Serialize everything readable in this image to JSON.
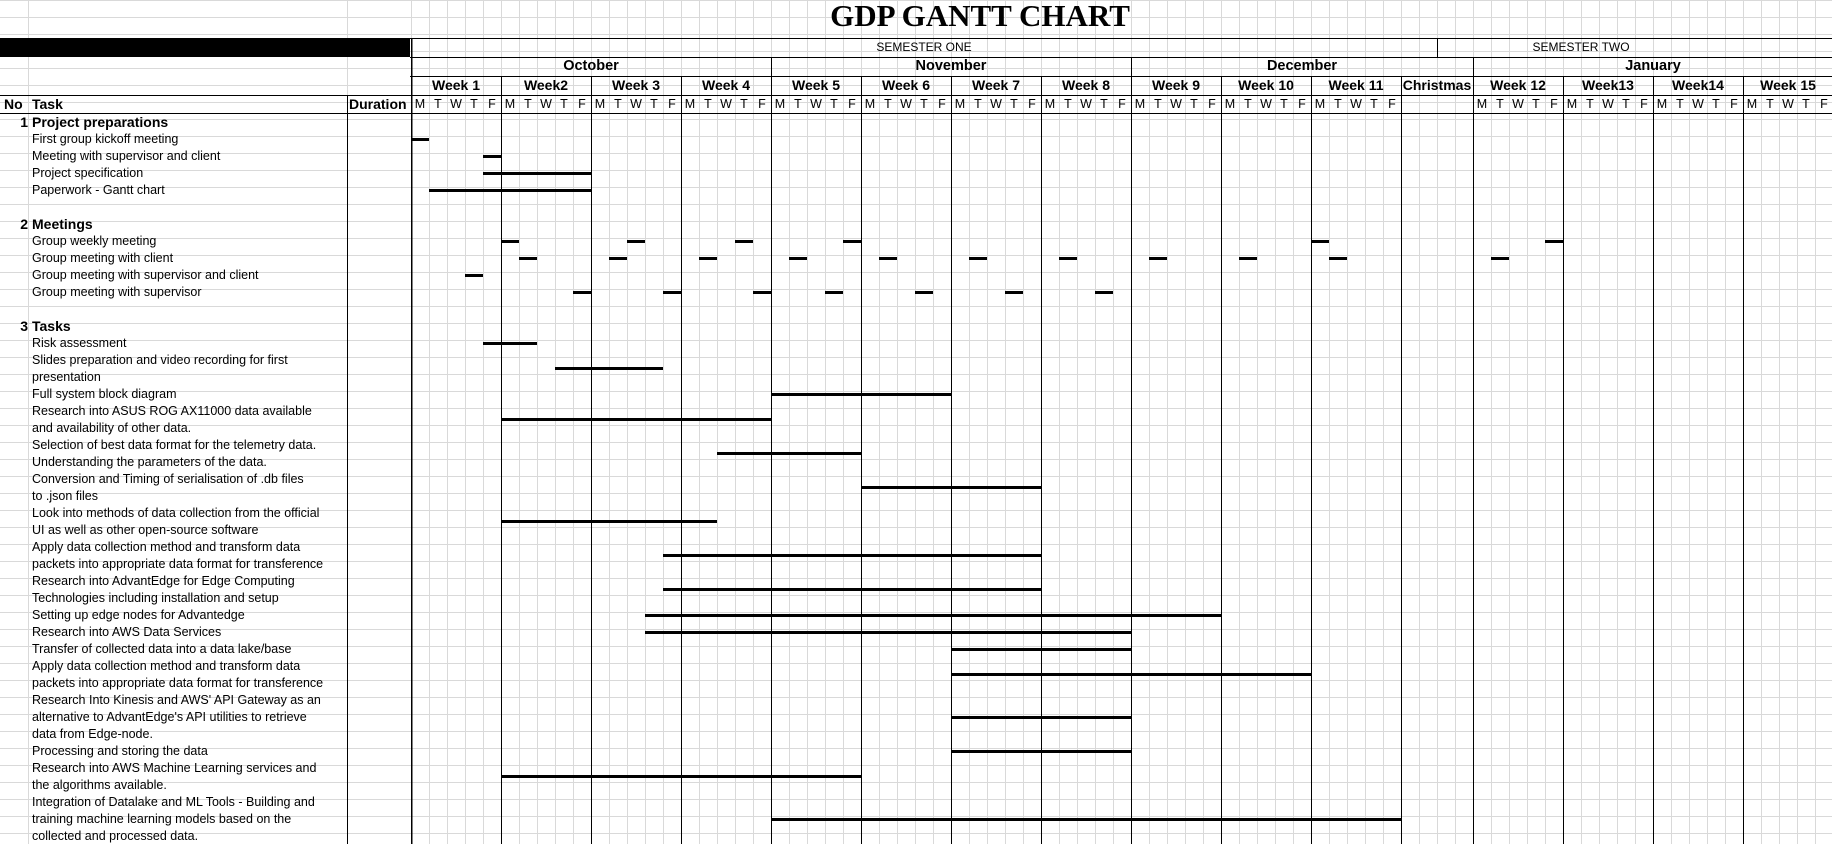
{
  "title": "GDP GANTT CHART",
  "semesters": [
    {
      "label": "SEMESTER ONE",
      "start_col": 0,
      "end_col": 57
    },
    {
      "label": "SEMESTER TWO",
      "start_col": 57,
      "end_col": 73
    }
  ],
  "months": [
    {
      "label": "October",
      "start_col": 0,
      "end_col": 20
    },
    {
      "label": "November",
      "start_col": 20,
      "end_col": 40
    },
    {
      "label": "December",
      "start_col": 40,
      "end_col": 59
    },
    {
      "label": "January",
      "start_col": 59,
      "end_col": 79
    }
  ],
  "weeks": [
    {
      "label": "Week 1",
      "start_col": 0
    },
    {
      "label": "Week2",
      "start_col": 5
    },
    {
      "label": "Week 3",
      "start_col": 10
    },
    {
      "label": "Week 4",
      "start_col": 15
    },
    {
      "label": "Week 5",
      "start_col": 20
    },
    {
      "label": "Week 6",
      "start_col": 25
    },
    {
      "label": "Week 7",
      "start_col": 30
    },
    {
      "label": "Week 8",
      "start_col": 35
    },
    {
      "label": "Week 9",
      "start_col": 40
    },
    {
      "label": "Week 10",
      "start_col": 45
    },
    {
      "label": "Week 11",
      "start_col": 50
    },
    {
      "label": "Christmas",
      "start_col": 55
    },
    {
      "label": "Week 12",
      "start_col": 59
    },
    {
      "label": "Week13",
      "start_col": 64
    },
    {
      "label": "Week14",
      "start_col": 69
    },
    {
      "label": "Week 15",
      "start_col": 74
    }
  ],
  "day_letters": [
    "M",
    "T",
    "W",
    "T",
    "F"
  ],
  "column_headers": {
    "no": "No",
    "task": "Task",
    "duration": "Duration"
  },
  "sections": [
    {
      "no": "1",
      "title": "Project preparations",
      "tasks": [
        {
          "name": "First group kickoff meeting",
          "bars": [
            [
              0,
              1
            ]
          ]
        },
        {
          "name": "Meeting with supervisor and client",
          "bars": [
            [
              4,
              5
            ]
          ]
        },
        {
          "name": "Project specification",
          "bars": [
            [
              4,
              10
            ]
          ]
        },
        {
          "name": "Paperwork - Gantt chart",
          "bars": [
            [
              1,
              10
            ]
          ]
        }
      ]
    },
    {
      "no": "2",
      "title": "Meetings",
      "tasks": [
        {
          "name": "Group weekly meeting",
          "bars": [
            [
              5,
              6
            ],
            [
              12,
              13
            ],
            [
              18,
              19
            ],
            [
              24,
              25
            ],
            [
              50,
              51
            ],
            [
              63,
              64
            ]
          ]
        },
        {
          "name": "Group meeting with client",
          "bars": [
            [
              6,
              7
            ],
            [
              11,
              12
            ],
            [
              16,
              17
            ],
            [
              21,
              22
            ],
            [
              26,
              27
            ],
            [
              31,
              32
            ],
            [
              36,
              37
            ],
            [
              41,
              42
            ],
            [
              46,
              47
            ],
            [
              51,
              52
            ],
            [
              60,
              61
            ]
          ]
        },
        {
          "name": "Group meeting with supervisor and client",
          "bars": [
            [
              3,
              4
            ]
          ]
        },
        {
          "name": "Group meeting with supervisor",
          "bars": [
            [
              9,
              10
            ],
            [
              14,
              15
            ],
            [
              19,
              20
            ],
            [
              23,
              24
            ],
            [
              28,
              29
            ],
            [
              33,
              34
            ],
            [
              38,
              39
            ]
          ]
        }
      ]
    },
    {
      "no": "3",
      "title": "Tasks",
      "tasks": [
        {
          "name": "Risk assessment",
          "bars": [
            [
              4,
              7
            ]
          ]
        },
        {
          "name": "Slides preparation and video recording for first\npresentation",
          "bars": [
            [
              8,
              14
            ]
          ]
        },
        {
          "name": "Full system block diagram",
          "bars": [
            [
              20,
              30
            ]
          ]
        },
        {
          "name": "Research into ASUS ROG AX11000 data available\nand availability of other data.",
          "bars": [
            [
              5,
              20
            ]
          ]
        },
        {
          "name": "Selection of best data format for the telemetry data.\nUnderstanding the parameters of the data.",
          "bars": [
            [
              17,
              25
            ]
          ]
        },
        {
          "name": "Conversion and Timing of serialisation of .db files\nto .json files",
          "bars": [
            [
              25,
              35
            ]
          ]
        },
        {
          "name": "Look into methods of data collection from the official\nUI as well as other open-source software",
          "bars": [
            [
              5,
              17
            ]
          ]
        },
        {
          "name": "Apply data collection method and transform data\npackets into appropriate data format for transference",
          "bars": [
            [
              14,
              35
            ]
          ]
        },
        {
          "name": "Research into AdvantEdge for Edge Computing\nTechnologies including installation and setup",
          "bars": [
            [
              14,
              35
            ]
          ]
        },
        {
          "name": "Setting up edge nodes for Advantedge",
          "bars": [
            [
              13,
              45
            ]
          ]
        },
        {
          "name": "Research into AWS Data Services",
          "bars": [
            [
              13,
              40
            ]
          ]
        },
        {
          "name": "Transfer of collected data into a data lake/base",
          "bars": [
            [
              30,
              40
            ]
          ]
        },
        {
          "name": "Apply data collection method and transform data\npackets into appropriate data format for transference",
          "bars": [
            [
              30,
              50
            ]
          ]
        },
        {
          "name": "Research Into Kinesis and AWS' API Gateway as an\nalternative to AdvantEdge's API utilities to retrieve\ndata from Edge-node.",
          "bars": [
            [
              30,
              40
            ]
          ]
        },
        {
          "name": "Processing and storing the data",
          "bars": [
            [
              30,
              40
            ]
          ]
        },
        {
          "name": "Research into AWS Machine Learning services and\nthe algorithms available.",
          "bars": [
            [
              5,
              25
            ]
          ]
        },
        {
          "name": "Integration of Datalake and ML Tools - Building and\ntraining machine learning models based on the\ncollected and processed data.",
          "bars": [
            [
              20,
              55
            ]
          ]
        }
      ]
    }
  ]
}
